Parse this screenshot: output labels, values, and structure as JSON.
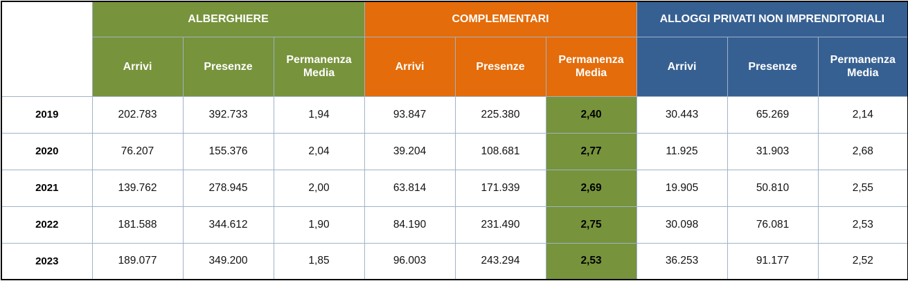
{
  "chart_data": {
    "type": "table",
    "groups": [
      {
        "label": "ALBERGHIERE",
        "color": "#77933c"
      },
      {
        "label": "COMPLEMENTARI",
        "color": "#e46c0a"
      },
      {
        "label": "ALLOGGI PRIVATI NON IMPRENDITORIALI",
        "color": "#376092"
      }
    ],
    "columns": [
      "Arrivi",
      "Presenze",
      "Permanenza Media"
    ],
    "highlight_color": "#77933c",
    "rows": [
      {
        "year": "2019",
        "values": [
          "202.783",
          "392.733",
          "1,94",
          "93.847",
          "225.380",
          "2,40",
          "30.443",
          "65.269",
          "2,14"
        ]
      },
      {
        "year": "2020",
        "values": [
          "76.207",
          "155.376",
          "2,04",
          "39.204",
          "108.681",
          "2,77",
          "11.925",
          "31.903",
          "2,68"
        ]
      },
      {
        "year": "2021",
        "values": [
          "139.762",
          "278.945",
          "2,00",
          "63.814",
          "171.939",
          "2,69",
          "19.905",
          "50.810",
          "2,55"
        ]
      },
      {
        "year": "2022",
        "values": [
          "181.588",
          "344.612",
          "1,90",
          "84.190",
          "231.490",
          "2,75",
          "30.098",
          "76.081",
          "2,53"
        ]
      },
      {
        "year": "2023",
        "values": [
          "189.077",
          "349.200",
          "1,85",
          "96.003",
          "243.294",
          "2,53",
          "36.253",
          "91.177",
          "2,52"
        ]
      }
    ]
  }
}
